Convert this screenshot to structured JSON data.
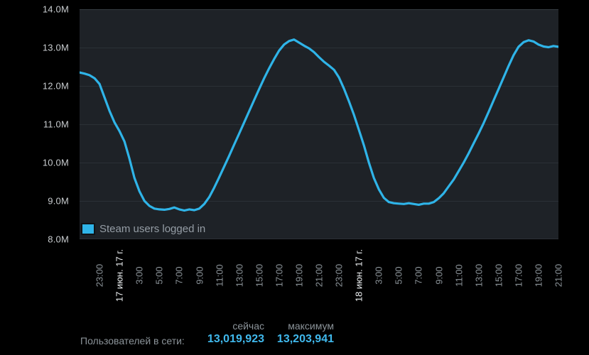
{
  "legend": {
    "label": "Steam users logged in"
  },
  "stats": {
    "header_now": "сейчас",
    "header_max": "максимум",
    "row_label": "Пользователей в сети:",
    "value_now": "13,019,923",
    "value_max": "13,203,941",
    "value_color": "#40b8ec"
  },
  "chart_data": {
    "type": "line",
    "title": "",
    "xlabel": "",
    "ylabel": "",
    "legend_position": "bottom-left inside plot",
    "grid": "horizontal only",
    "line_color": "#2fb4e8",
    "ylim": [
      8000000,
      14000000
    ],
    "y_ticks": [
      {
        "value": 14.0,
        "label": "14.0M"
      },
      {
        "value": 13.0,
        "label": "13.0M"
      },
      {
        "value": 12.0,
        "label": "12.0M"
      },
      {
        "value": 11.0,
        "label": "11.0M"
      },
      {
        "value": 10.0,
        "label": "10.0M"
      },
      {
        "value": 9.0,
        "label": "9.0M"
      },
      {
        "value": 8.0,
        "label": "8.0M"
      }
    ],
    "x_span_hours": 48,
    "x_ticks": [
      {
        "t": 2,
        "label": "23:00",
        "date": false
      },
      {
        "t": 4,
        "label": "17 июн. 17 г.",
        "date": true
      },
      {
        "t": 6,
        "label": "3:00",
        "date": false
      },
      {
        "t": 8,
        "label": "5:00",
        "date": false
      },
      {
        "t": 10,
        "label": "7:00",
        "date": false
      },
      {
        "t": 12,
        "label": "9:00",
        "date": false
      },
      {
        "t": 14,
        "label": "11:00",
        "date": false
      },
      {
        "t": 16,
        "label": "13:00",
        "date": false
      },
      {
        "t": 18,
        "label": "15:00",
        "date": false
      },
      {
        "t": 20,
        "label": "17:00",
        "date": false
      },
      {
        "t": 22,
        "label": "19:00",
        "date": false
      },
      {
        "t": 24,
        "label": "21:00",
        "date": false
      },
      {
        "t": 26,
        "label": "23:00",
        "date": false
      },
      {
        "t": 28,
        "label": "18 июн. 17 г.",
        "date": true
      },
      {
        "t": 30,
        "label": "3:00",
        "date": false
      },
      {
        "t": 32,
        "label": "5:00",
        "date": false
      },
      {
        "t": 34,
        "label": "7:00",
        "date": false
      },
      {
        "t": 36,
        "label": "9:00",
        "date": false
      },
      {
        "t": 38,
        "label": "11:00",
        "date": false
      },
      {
        "t": 40,
        "label": "13:00",
        "date": false
      },
      {
        "t": 42,
        "label": "15:00",
        "date": false
      },
      {
        "t": 44,
        "label": "17:00",
        "date": false
      },
      {
        "t": 46,
        "label": "19:00",
        "date": false
      },
      {
        "t": 48,
        "label": "21:00",
        "date": false
      }
    ],
    "series": [
      {
        "name": "Steam users logged in",
        "units": "millions of users",
        "points": [
          [
            0,
            12.35
          ],
          [
            0.5,
            12.32
          ],
          [
            1,
            12.28
          ],
          [
            1.5,
            12.2
          ],
          [
            2,
            12.05
          ],
          [
            2.5,
            11.7
          ],
          [
            3,
            11.35
          ],
          [
            3.5,
            11.05
          ],
          [
            4,
            10.82
          ],
          [
            4.5,
            10.55
          ],
          [
            5,
            10.1
          ],
          [
            5.5,
            9.6
          ],
          [
            6,
            9.25
          ],
          [
            6.5,
            9.0
          ],
          [
            7,
            8.87
          ],
          [
            7.5,
            8.8
          ],
          [
            8,
            8.78
          ],
          [
            8.5,
            8.77
          ],
          [
            9,
            8.79
          ],
          [
            9.5,
            8.83
          ],
          [
            10,
            8.78
          ],
          [
            10.5,
            8.75
          ],
          [
            11,
            8.78
          ],
          [
            11.5,
            8.76
          ],
          [
            12,
            8.8
          ],
          [
            12.5,
            8.92
          ],
          [
            13,
            9.1
          ],
          [
            13.5,
            9.35
          ],
          [
            14,
            9.62
          ],
          [
            14.5,
            9.9
          ],
          [
            15,
            10.18
          ],
          [
            15.5,
            10.47
          ],
          [
            16,
            10.76
          ],
          [
            16.5,
            11.05
          ],
          [
            17,
            11.34
          ],
          [
            17.5,
            11.63
          ],
          [
            18,
            11.92
          ],
          [
            18.5,
            12.2
          ],
          [
            19,
            12.46
          ],
          [
            19.5,
            12.7
          ],
          [
            20,
            12.92
          ],
          [
            20.5,
            13.08
          ],
          [
            21,
            13.17
          ],
          [
            21.5,
            13.21
          ],
          [
            22,
            13.13
          ],
          [
            22.5,
            13.05
          ],
          [
            23,
            12.98
          ],
          [
            23.5,
            12.88
          ],
          [
            24,
            12.75
          ],
          [
            24.5,
            12.63
          ],
          [
            25,
            12.53
          ],
          [
            25.5,
            12.42
          ],
          [
            26,
            12.22
          ],
          [
            26.5,
            11.93
          ],
          [
            27,
            11.6
          ],
          [
            27.5,
            11.25
          ],
          [
            28,
            10.85
          ],
          [
            28.5,
            10.45
          ],
          [
            29,
            10.0
          ],
          [
            29.5,
            9.6
          ],
          [
            30,
            9.3
          ],
          [
            30.5,
            9.08
          ],
          [
            31,
            8.97
          ],
          [
            31.5,
            8.94
          ],
          [
            32,
            8.93
          ],
          [
            32.5,
            8.92
          ],
          [
            33,
            8.94
          ],
          [
            33.5,
            8.92
          ],
          [
            34,
            8.9
          ],
          [
            34.5,
            8.93
          ],
          [
            35,
            8.93
          ],
          [
            35.5,
            8.97
          ],
          [
            36,
            9.07
          ],
          [
            36.5,
            9.2
          ],
          [
            37,
            9.38
          ],
          [
            37.5,
            9.56
          ],
          [
            38,
            9.78
          ],
          [
            38.5,
            10.0
          ],
          [
            39,
            10.24
          ],
          [
            39.5,
            10.5
          ],
          [
            40,
            10.76
          ],
          [
            40.5,
            11.03
          ],
          [
            41,
            11.32
          ],
          [
            41.5,
            11.62
          ],
          [
            42,
            11.92
          ],
          [
            42.5,
            12.22
          ],
          [
            43,
            12.52
          ],
          [
            43.5,
            12.8
          ],
          [
            44,
            13.02
          ],
          [
            44.5,
            13.14
          ],
          [
            45,
            13.19
          ],
          [
            45.5,
            13.16
          ],
          [
            46,
            13.08
          ],
          [
            46.5,
            13.03
          ],
          [
            47,
            13.01
          ],
          [
            47.5,
            13.04
          ],
          [
            48,
            13.02
          ]
        ]
      }
    ],
    "annotations": {
      "current_users": 13019923,
      "maximum_users": 13203941
    }
  }
}
